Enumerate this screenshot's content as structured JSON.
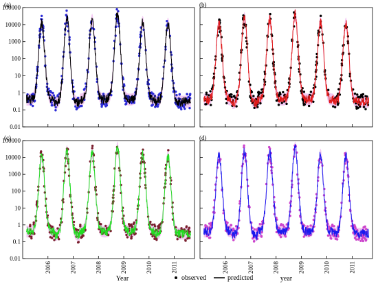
{
  "chart_data": {
    "type": "scatter",
    "y_scale": "log",
    "ylim": [
      0.01,
      100000
    ],
    "x_range": [
      2005.0,
      2011.8
    ],
    "y_tick_labels": [
      "0.01",
      "0.1",
      "1",
      "10",
      "100",
      "1000",
      "10000",
      "100000"
    ],
    "x_tick_labels": [
      "2006",
      "2007",
      "2008",
      "2009",
      "2010",
      "2011"
    ],
    "x_tick_values": [
      2006,
      2007,
      2008,
      2009,
      2010,
      2011
    ],
    "season_peaks": [
      {
        "year": 2005.75,
        "peak": 12000,
        "trough": 0.4
      },
      {
        "year": 2006.75,
        "peak": 25000,
        "trough": 0.25
      },
      {
        "year": 2007.75,
        "peak": 20000,
        "trough": 0.4
      },
      {
        "year": 2008.75,
        "peak": 40000,
        "trough": 0.4
      },
      {
        "year": 2009.75,
        "peak": 15000,
        "trough": 0.4
      },
      {
        "year": 2010.75,
        "peak": 12000,
        "trough": 0.3
      }
    ],
    "panels": [
      {
        "label": "(a)",
        "observed_color": "#2b2bd6",
        "predicted_color": "#000000",
        "band_color": "#f3c9f3",
        "xlabel": "Year",
        "show_y_ticks": true
      },
      {
        "label": "(b)",
        "observed_color": "#000000",
        "predicted_color": "#e01a1a",
        "band_color": "#f3c9f3",
        "xlabel": "",
        "show_y_ticks": false
      },
      {
        "label": "(c)",
        "observed_color": "#7a1f2e",
        "predicted_color": "#22dd22",
        "band_color": "#f3c9f3",
        "xlabel": "Year",
        "show_y_ticks": true
      },
      {
        "label": "(d)",
        "observed_color": "#cc44cc",
        "predicted_color": "#1a1aee",
        "band_color": "#f3c9f3",
        "xlabel": "year",
        "show_y_ticks": false
      }
    ],
    "legend": {
      "placement": "bottom-center",
      "entries": [
        {
          "name": "observed",
          "symbol": "dot"
        },
        {
          "name": "predicted",
          "symbol": "line"
        }
      ]
    }
  }
}
